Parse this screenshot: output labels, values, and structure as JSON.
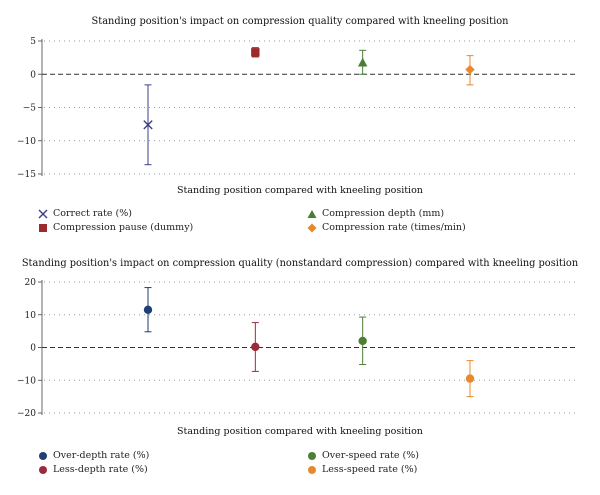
{
  "chart_data": [
    {
      "type": "scatter",
      "title": "Standing position's impact on compression quality compared with kneeling position",
      "xlabel": "Standing position compared with kneeling position",
      "ylabel": "",
      "ylim": [
        -15,
        5
      ],
      "yticks": [
        5,
        0,
        -5,
        -10,
        -15
      ],
      "grid": "horizontal dotted",
      "reference_line": 0,
      "legend_placement": "bottom, two columns",
      "series": [
        {
          "name": "Correct rate (%)",
          "marker": "x",
          "color": "#3d3f8a",
          "value": -7.6,
          "ci": [
            -13.6,
            -1.6
          ]
        },
        {
          "name": "Compression pause (dummy)",
          "marker": "square",
          "color": "#9b2a2a",
          "value": 3.3,
          "ci": [
            2.6,
            4.0
          ]
        },
        {
          "name": "Compression depth (mm)",
          "marker": "triangle",
          "color": "#4a7d35",
          "value": 1.8,
          "ci": [
            0.0,
            3.6
          ]
        },
        {
          "name": "Compression rate (times/min)",
          "marker": "diamond",
          "color": "#e8892b",
          "value": 0.7,
          "ci": [
            -1.6,
            2.8
          ]
        }
      ]
    },
    {
      "type": "scatter",
      "title": "Standing position's impact on compression quality (nonstandard compression) compared with kneeling position",
      "xlabel": "Standing position compared with kneeling position",
      "ylabel": "",
      "ylim": [
        -20,
        20
      ],
      "yticks": [
        20,
        10,
        0,
        -10,
        -20
      ],
      "grid": "horizontal dotted",
      "reference_line": 0,
      "legend_placement": "bottom, two columns",
      "series": [
        {
          "name": "Over-depth rate (%)",
          "marker": "circle",
          "color": "#1f3f75",
          "value": 11.5,
          "ci": [
            4.8,
            18.3
          ]
        },
        {
          "name": "Less-depth rate (%)",
          "marker": "circle",
          "color": "#9b2a3a",
          "value": 0.2,
          "ci": [
            -7.3,
            7.6
          ]
        },
        {
          "name": "Over-speed rate (%)",
          "marker": "circle",
          "color": "#4e7d34",
          "value": 2.0,
          "ci": [
            -5.2,
            9.3
          ]
        },
        {
          "name": "Less-speed rate (%)",
          "marker": "circle",
          "color": "#e88a2b",
          "value": -9.5,
          "ci": [
            -15.0,
            -4.0
          ]
        }
      ]
    }
  ]
}
